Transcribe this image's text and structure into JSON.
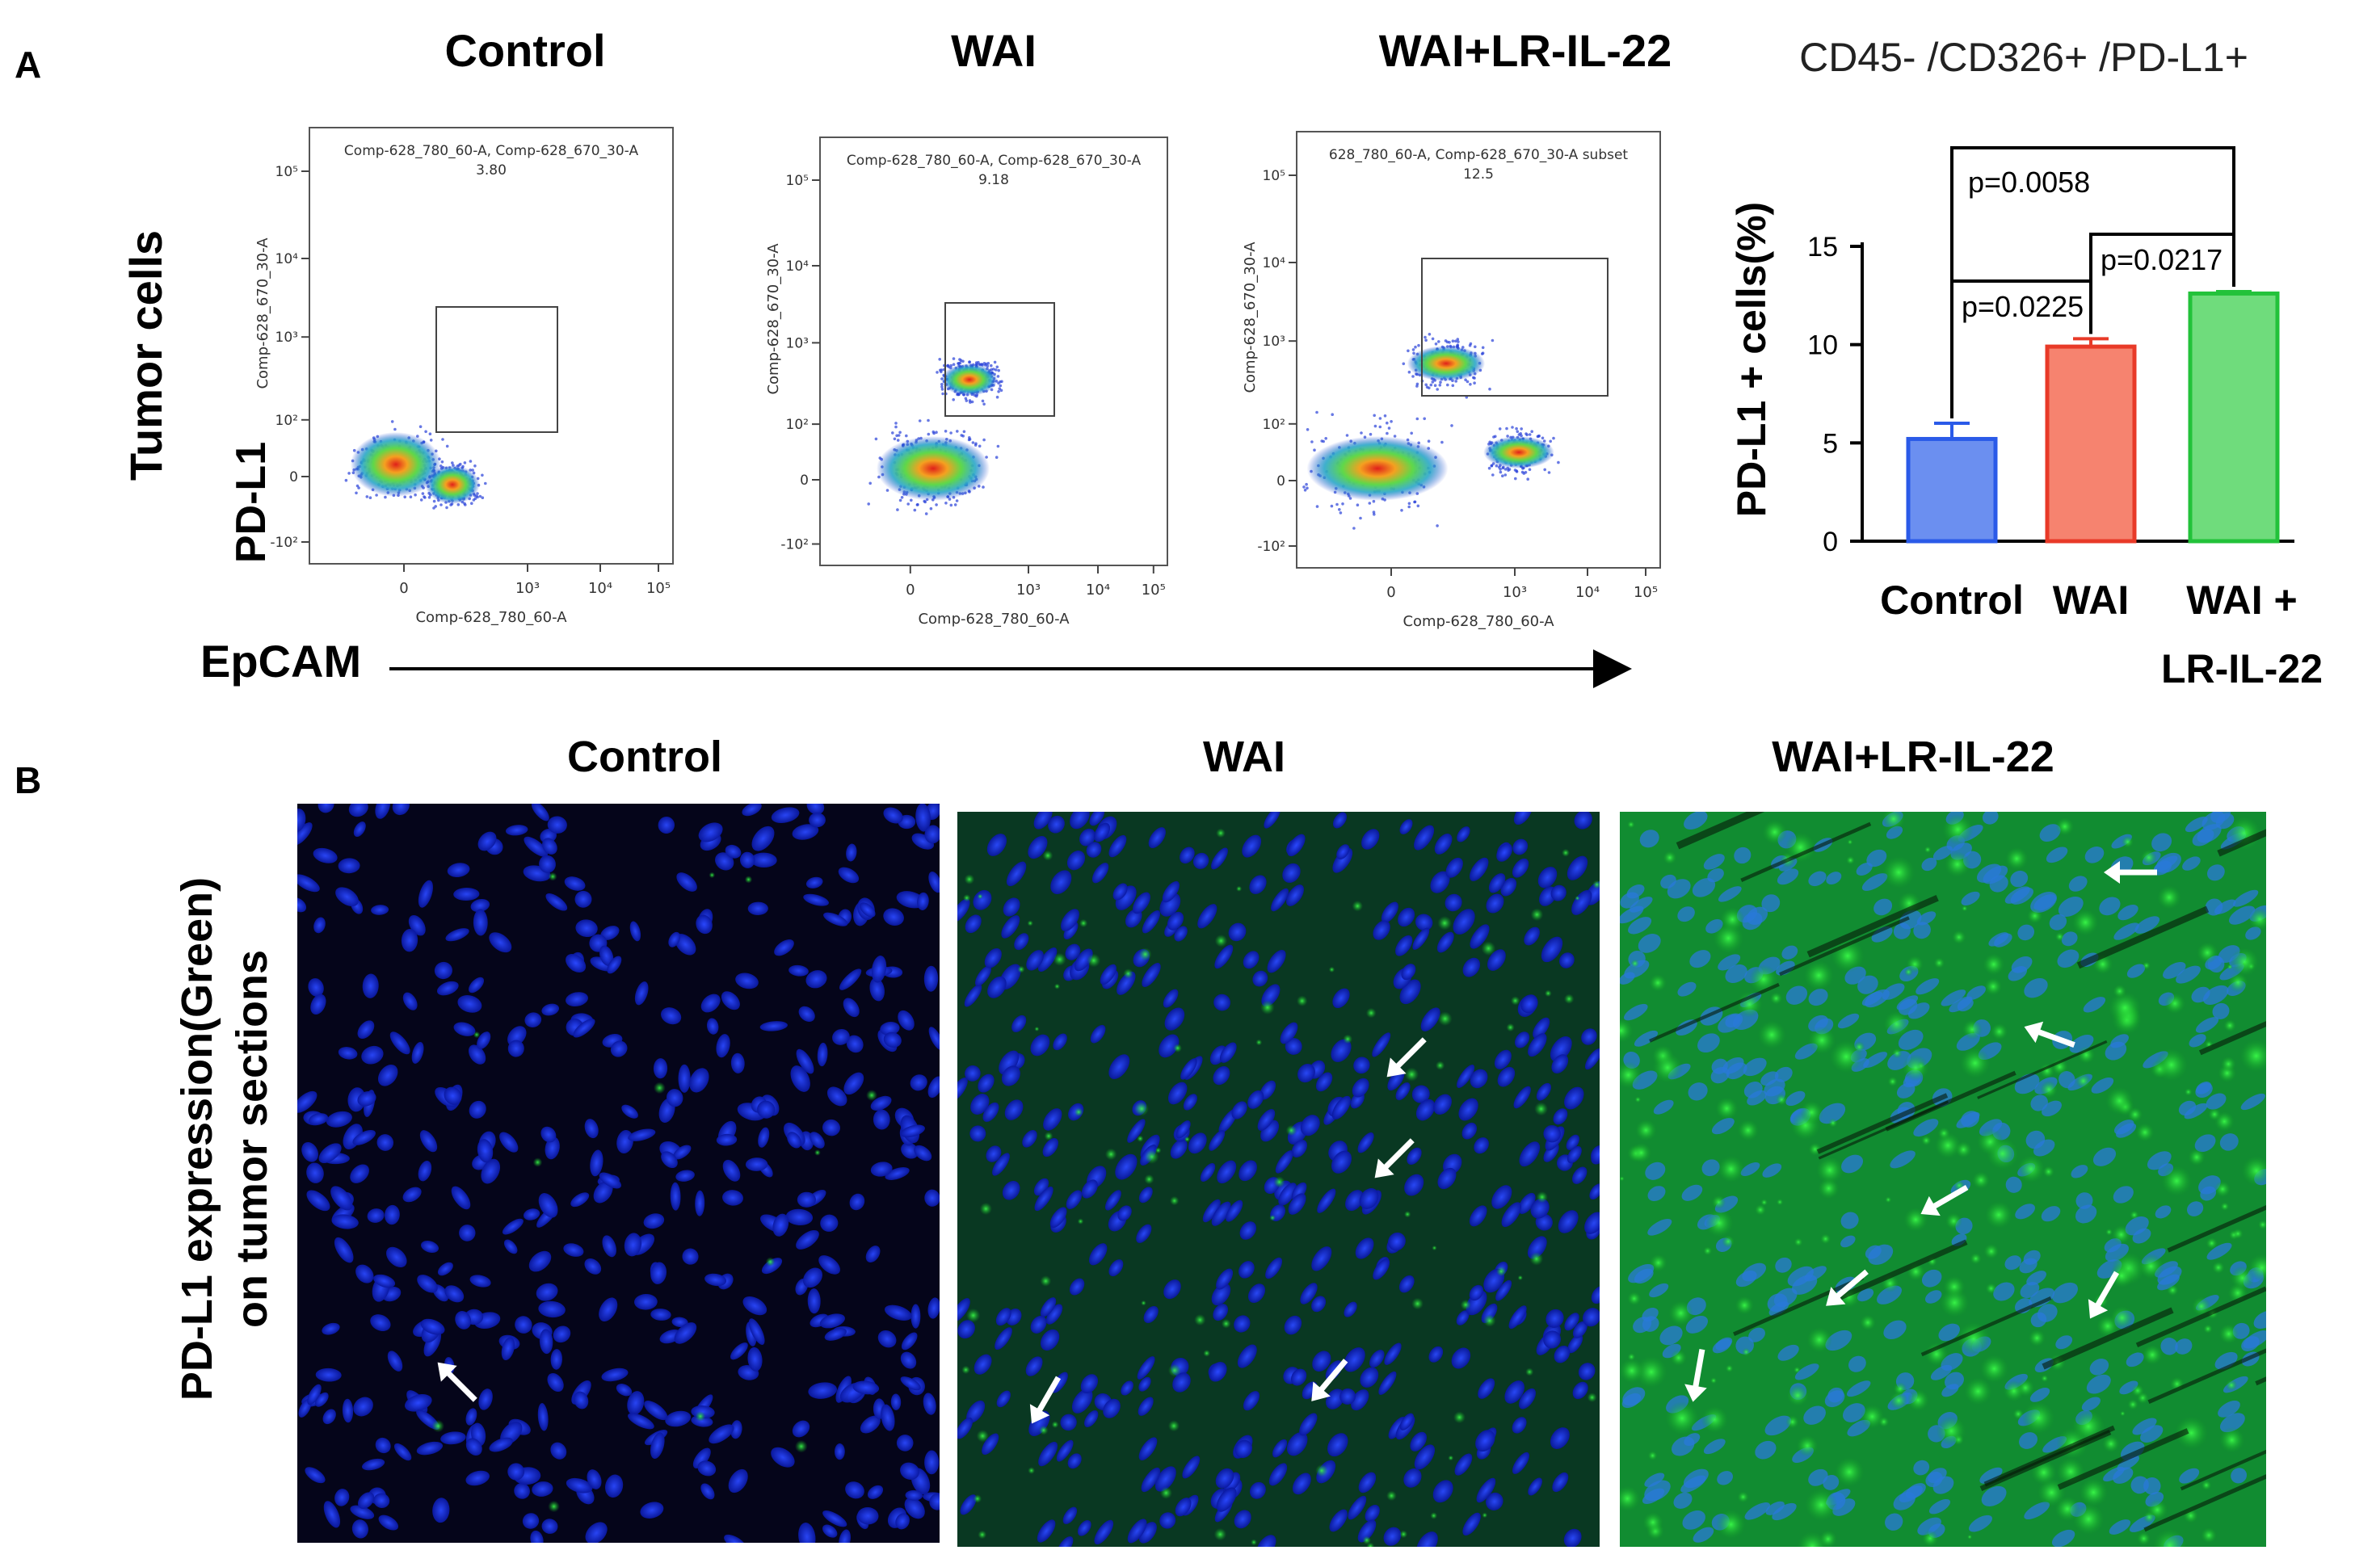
{
  "panel_a": {
    "letter": "A",
    "row_label": "Tumor cells",
    "x_axis_label": "EpCAM",
    "y_axis_label": "PD-L1",
    "flow_plots": [
      {
        "group": "Control",
        "gate_label": "Comp-628_780_60-A, Comp-628_670_30-A",
        "gate_value": "3.80",
        "x_param": "Comp-628_780_60-A",
        "y_param": "Comp-628_670_30-A",
        "x_ticks": [
          "0",
          "10³",
          "10⁴",
          "10⁵"
        ],
        "y_ticks": [
          "-10²",
          "0",
          "10²",
          "10³",
          "10⁴",
          "10⁵"
        ]
      },
      {
        "group": "WAI",
        "gate_label": "Comp-628_780_60-A, Comp-628_670_30-A",
        "gate_value": "9.18",
        "x_param": "Comp-628_780_60-A",
        "y_param": "Comp-628_670_30-A",
        "x_ticks": [
          "0",
          "10³",
          "10⁴",
          "10⁵"
        ],
        "y_ticks": [
          "-10²",
          "0",
          "10²",
          "10³",
          "10⁴",
          "10⁵"
        ]
      },
      {
        "group": "WAI+LR-IL-22",
        "gate_label": "628_780_60-A, Comp-628_670_30-A subset",
        "gate_value": "12.5",
        "x_param": "Comp-628_780_60-A",
        "y_param": "Comp-628_670_30-A",
        "x_ticks": [
          "0",
          "10³",
          "10⁴",
          "10⁵"
        ],
        "y_ticks": [
          "-10²",
          "0",
          "10²",
          "10³",
          "10⁴",
          "10⁵"
        ]
      }
    ],
    "colors": {
      "bar_control": "#6b8ff0",
      "bar_wai": "#f6836f",
      "bar_combo": "#6fdc7c"
    }
  },
  "chart_data": {
    "type": "bar",
    "title": "CD45- /CD326+ /PD-L1+",
    "xlabel": "",
    "ylabel": "PD-L1 + cells(%)",
    "ylim": [
      0,
      15
    ],
    "yticks": [
      0,
      5,
      10,
      15
    ],
    "categories": [
      "Control",
      "WAI",
      "WAI + LR-IL-22"
    ],
    "category_labels": [
      [
        "Control"
      ],
      [
        "WAI"
      ],
      [
        "WAI +",
        "LR-IL-22"
      ]
    ],
    "values": [
      5.2,
      9.9,
      12.6
    ],
    "errors": [
      0.8,
      0.4,
      0.1
    ],
    "significance": [
      {
        "from": 0,
        "to": 1,
        "label": "p=0.0225"
      },
      {
        "from": 1,
        "to": 2,
        "label": "p=0.0217"
      },
      {
        "from": 0,
        "to": 2,
        "label": "p=0.0058"
      }
    ]
  },
  "panel_b": {
    "letter": "B",
    "row_label_line1": "PD-L1 expression(Green)",
    "row_label_line2": "on tumor sections",
    "images": [
      {
        "group": "Control",
        "green_level": 0.05
      },
      {
        "group": "WAI",
        "green_level": 0.35
      },
      {
        "group": "WAI+LR-IL-22",
        "green_level": 0.9
      }
    ]
  }
}
